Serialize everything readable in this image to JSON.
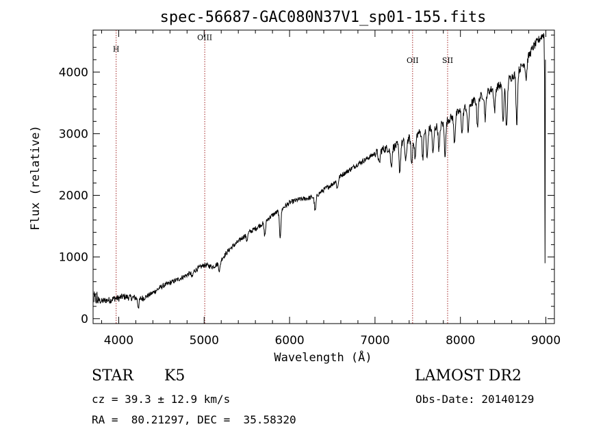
{
  "chart_data": {
    "type": "line",
    "title": "spec-56687-GAC080N37V1_sp01-155.fits",
    "xlabel": "Wavelength (Å)",
    "ylabel": "Flux (relative)",
    "xlim": [
      3700,
      9100
    ],
    "ylim": [
      -80,
      4680
    ],
    "xticks": [
      4000,
      5000,
      6000,
      7000,
      8000,
      9000
    ],
    "yticks": [
      0,
      1000,
      2000,
      3000,
      4000
    ],
    "line_color": "#000000",
    "grid": false,
    "series": [
      {
        "x": [
          3710,
          3750,
          3800,
          3850,
          3900,
          3950,
          4000,
          4050,
          4100,
          4150,
          4200,
          4250,
          4300,
          4400,
          4500,
          4600,
          4700,
          4800,
          4900,
          5000,
          5050,
          5100,
          5150,
          5200,
          5300,
          5400,
          5500,
          5600,
          5700,
          5800,
          5900,
          6000,
          6100,
          6200,
          6300,
          6400,
          6500,
          6600,
          6700,
          6800,
          6900,
          7000,
          7100,
          7200,
          7300,
          7400,
          7500,
          7600,
          7700,
          7800,
          7900,
          8000,
          8100,
          8200,
          8300,
          8400,
          8500,
          8600,
          8700,
          8800,
          8850,
          8900,
          8950,
          8980
        ],
        "y": [
          300,
          310,
          280,
          300,
          300,
          330,
          330,
          360,
          350,
          340,
          340,
          320,
          340,
          420,
          520,
          580,
          640,
          710,
          790,
          870,
          860,
          840,
          880,
          960,
          1130,
          1250,
          1380,
          1460,
          1560,
          1680,
          1770,
          1880,
          1930,
          1950,
          1980,
          2090,
          2180,
          2320,
          2410,
          2510,
          2590,
          2680,
          2750,
          2770,
          2840,
          2920,
          3000,
          3070,
          3100,
          3170,
          3270,
          3370,
          3460,
          3570,
          3660,
          3750,
          3800,
          3920,
          4060,
          4260,
          4400,
          4490,
          4580,
          4620
        ]
      }
    ],
    "absorption_features": [
      {
        "x": 4230,
        "depth": 130
      },
      {
        "x": 4860,
        "depth": 90
      },
      {
        "x": 5180,
        "depth": 150
      },
      {
        "x": 5500,
        "depth": 110
      },
      {
        "x": 5710,
        "depth": 220
      },
      {
        "x": 5890,
        "depth": 430
      },
      {
        "x": 6300,
        "depth": 240
      },
      {
        "x": 6560,
        "depth": 150
      },
      {
        "x": 7050,
        "depth": 220
      },
      {
        "x": 7190,
        "depth": 300
      },
      {
        "x": 7290,
        "depth": 450
      },
      {
        "x": 7360,
        "depth": 350
      },
      {
        "x": 7430,
        "depth": 450
      },
      {
        "x": 7470,
        "depth": 380
      },
      {
        "x": 7560,
        "depth": 420
      },
      {
        "x": 7610,
        "depth": 480
      },
      {
        "x": 7680,
        "depth": 420
      },
      {
        "x": 7750,
        "depth": 400
      },
      {
        "x": 7820,
        "depth": 520
      },
      {
        "x": 7930,
        "depth": 430
      },
      {
        "x": 8020,
        "depth": 380
      },
      {
        "x": 8090,
        "depth": 420
      },
      {
        "x": 8200,
        "depth": 430
      },
      {
        "x": 8290,
        "depth": 400
      },
      {
        "x": 8400,
        "depth": 370
      },
      {
        "x": 8500,
        "depth": 620
      },
      {
        "x": 8540,
        "depth": 780
      },
      {
        "x": 8660,
        "depth": 820
      },
      {
        "x": 8770,
        "depth": 300
      }
    ],
    "line_markers": [
      {
        "label": "H",
        "x": 3970,
        "label_y": 4330
      },
      {
        "label": "OIII",
        "x": 5007,
        "label_y": 4520
      },
      {
        "label": "OII",
        "x": 7440,
        "label_y": 4150
      },
      {
        "label": "SII",
        "x": 7850,
        "label_y": 4150
      }
    ],
    "marker_color": "#a02020"
  },
  "info": {
    "object_class": "STAR",
    "subclass": "K5",
    "survey": "LAMOST DR2",
    "redshift": "cz = 39.3 ± 12.9 km/s",
    "obs_date": "Obs-Date: 20140129",
    "coords": "RA =  80.21297, DEC =  35.58320"
  }
}
